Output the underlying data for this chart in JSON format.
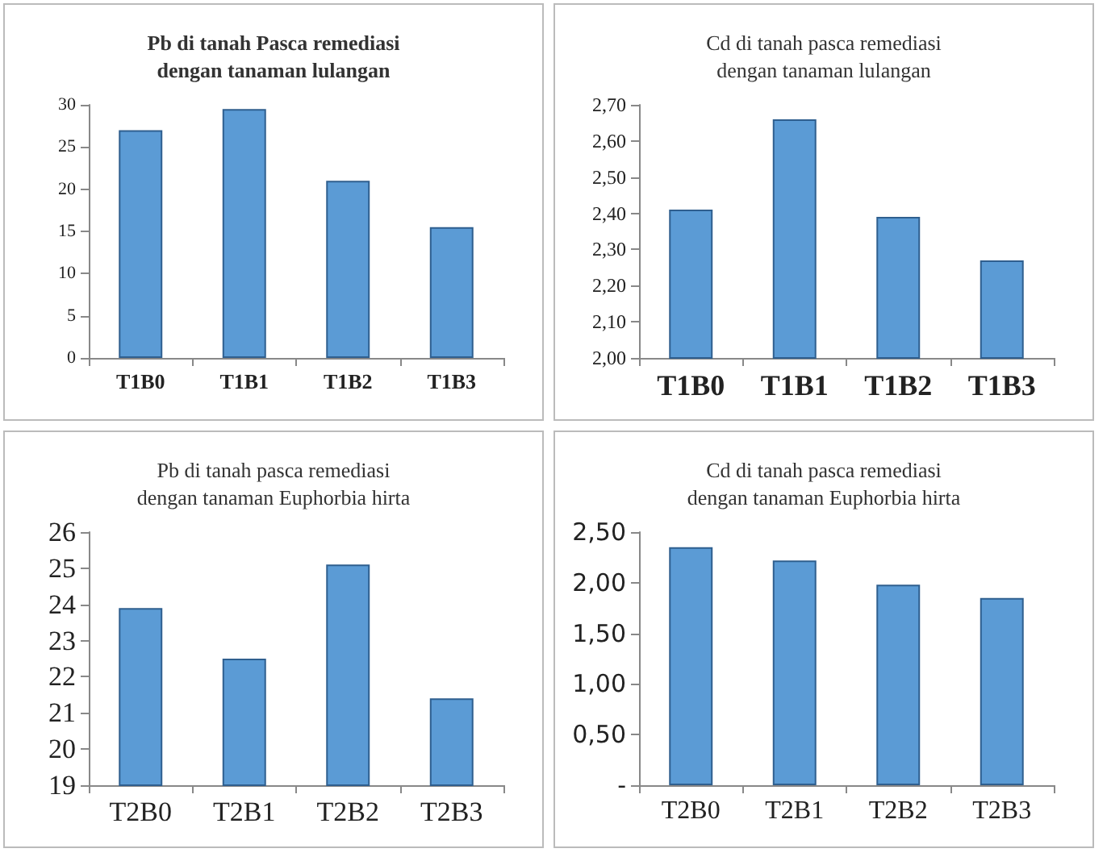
{
  "chart_data": [
    {
      "type": "bar",
      "title": "Pb di tanah Pasca remediasi\ndengan tanaman lulangan",
      "categories": [
        "T1B0",
        "T1B1",
        "T1B2",
        "T1B3"
      ],
      "values": [
        27,
        29.5,
        21,
        15.5
      ],
      "color": "#5b9bd5",
      "ylim": [
        0,
        30
      ],
      "yticks": [
        0,
        5,
        10,
        15,
        20,
        25,
        30
      ],
      "grid": false
    },
    {
      "type": "bar",
      "title": "Cd di tanah pasca remediasi\ndengan tanaman lulangan",
      "categories": [
        "T1B0",
        "T1B1",
        "T1B2",
        "T1B3"
      ],
      "values": [
        2.41,
        2.66,
        2.39,
        2.27
      ],
      "color": "#5b9bd5",
      "ylim": [
        2,
        2.7
      ],
      "yticks": [
        {
          "value": 2,
          "label": "2,00"
        },
        {
          "value": 2.1,
          "label": "2,10"
        },
        {
          "value": 2.2,
          "label": "2,20"
        },
        {
          "value": 2.3,
          "label": "2,30"
        },
        {
          "value": 2.4,
          "label": "2,40"
        },
        {
          "value": 2.5,
          "label": "2,50"
        },
        {
          "value": 2.6,
          "label": "2,60"
        },
        {
          "value": 2.7,
          "label": "2,70"
        }
      ],
      "grid": false
    },
    {
      "type": "bar",
      "title": "Pb di tanah pasca remediasi\ndengan tanaman Euphorbia hirta",
      "categories": [
        "T2B0",
        "T2B1",
        "T2B2",
        "T2B3"
      ],
      "values": [
        23.9,
        22.5,
        25.1,
        21.4
      ],
      "color": "#5b9bd5",
      "ylim": [
        19,
        26
      ],
      "yticks": [
        19,
        20,
        21,
        22,
        23,
        24,
        25,
        26
      ],
      "grid": false
    },
    {
      "type": "bar",
      "title": "Cd di tanah pasca remediasi\ndengan tanaman Euphorbia hirta",
      "categories": [
        "T2B0",
        "T2B1",
        "T2B2",
        "T2B3"
      ],
      "values": [
        2.35,
        2.22,
        1.98,
        1.85
      ],
      "color": "#5b9bd5",
      "ylim": [
        0,
        2.5
      ],
      "yticks": [
        {
          "value": 0,
          "label": "-"
        },
        {
          "value": 0.5,
          "label": "0,50"
        },
        {
          "value": 1,
          "label": "1,00"
        },
        {
          "value": 1.5,
          "label": "1,50"
        },
        {
          "value": 2,
          "label": "2,00"
        },
        {
          "value": 2.5,
          "label": "2,50"
        }
      ],
      "grid": false
    }
  ]
}
